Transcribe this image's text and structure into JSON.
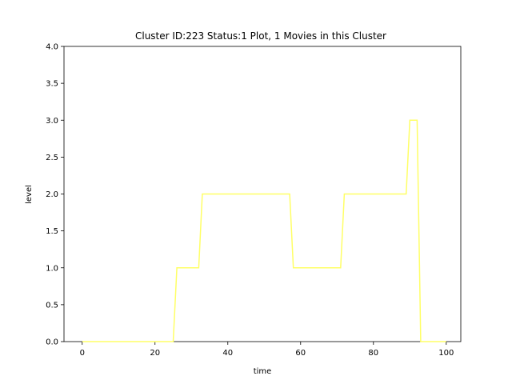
{
  "chart_data": {
    "type": "line",
    "title": "Cluster ID:223 Status:1 Plot, 1 Movies in this Cluster",
    "xlabel": "time",
    "ylabel": "level",
    "xlim": [
      -5,
      104
    ],
    "ylim": [
      0,
      4
    ],
    "xticks": [
      0,
      20,
      40,
      60,
      80,
      100
    ],
    "yticks": [
      0.0,
      0.5,
      1.0,
      1.5,
      2.0,
      2.5,
      3.0,
      3.5,
      4.0
    ],
    "xtick_labels": [
      "0",
      "20",
      "40",
      "60",
      "80",
      "100"
    ],
    "ytick_labels": [
      "0.0",
      "0.5",
      "1.0",
      "1.5",
      "2.0",
      "2.5",
      "3.0",
      "3.5",
      "4.0"
    ],
    "grid": false,
    "legend": "none",
    "series": [
      {
        "color": "#ffff66",
        "x": [
          0,
          25,
          26,
          32,
          33,
          57,
          58,
          71,
          72,
          89,
          90,
          92,
          93,
          100
        ],
        "y": [
          0,
          0,
          1,
          1,
          2,
          2,
          1,
          1,
          2,
          2,
          3,
          3,
          0,
          0
        ]
      }
    ]
  }
}
